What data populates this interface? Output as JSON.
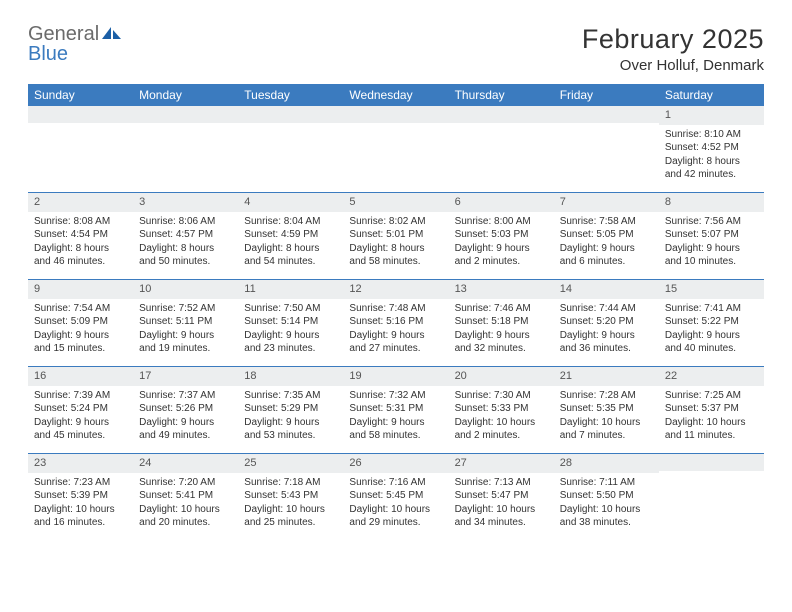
{
  "logo": {
    "text_general": "General",
    "text_blue": "Blue",
    "icon_color": "#1b5fa6"
  },
  "title": "February 2025",
  "location": "Over Holluf, Denmark",
  "colors": {
    "header_bar": "#3b7bbf",
    "header_text": "#ffffff",
    "daynum_bg": "#eceeef",
    "daynum_text": "#555555",
    "body_text": "#333333",
    "week_divider": "#3b7bbf",
    "background": "#ffffff"
  },
  "typography": {
    "title_fontsize": 27,
    "location_fontsize": 15,
    "header_fontsize": 12,
    "daynum_fontsize": 11,
    "body_fontsize": 10,
    "font_family": "Arial"
  },
  "day_names": [
    "Sunday",
    "Monday",
    "Tuesday",
    "Wednesday",
    "Thursday",
    "Friday",
    "Saturday"
  ],
  "weeks": [
    [
      null,
      null,
      null,
      null,
      null,
      null,
      {
        "n": "1",
        "sunrise": "8:10 AM",
        "sunset": "4:52 PM",
        "daylight": "8 hours and 42 minutes."
      }
    ],
    [
      {
        "n": "2",
        "sunrise": "8:08 AM",
        "sunset": "4:54 PM",
        "daylight": "8 hours and 46 minutes."
      },
      {
        "n": "3",
        "sunrise": "8:06 AM",
        "sunset": "4:57 PM",
        "daylight": "8 hours and 50 minutes."
      },
      {
        "n": "4",
        "sunrise": "8:04 AM",
        "sunset": "4:59 PM",
        "daylight": "8 hours and 54 minutes."
      },
      {
        "n": "5",
        "sunrise": "8:02 AM",
        "sunset": "5:01 PM",
        "daylight": "8 hours and 58 minutes."
      },
      {
        "n": "6",
        "sunrise": "8:00 AM",
        "sunset": "5:03 PM",
        "daylight": "9 hours and 2 minutes."
      },
      {
        "n": "7",
        "sunrise": "7:58 AM",
        "sunset": "5:05 PM",
        "daylight": "9 hours and 6 minutes."
      },
      {
        "n": "8",
        "sunrise": "7:56 AM",
        "sunset": "5:07 PM",
        "daylight": "9 hours and 10 minutes."
      }
    ],
    [
      {
        "n": "9",
        "sunrise": "7:54 AM",
        "sunset": "5:09 PM",
        "daylight": "9 hours and 15 minutes."
      },
      {
        "n": "10",
        "sunrise": "7:52 AM",
        "sunset": "5:11 PM",
        "daylight": "9 hours and 19 minutes."
      },
      {
        "n": "11",
        "sunrise": "7:50 AM",
        "sunset": "5:14 PM",
        "daylight": "9 hours and 23 minutes."
      },
      {
        "n": "12",
        "sunrise": "7:48 AM",
        "sunset": "5:16 PM",
        "daylight": "9 hours and 27 minutes."
      },
      {
        "n": "13",
        "sunrise": "7:46 AM",
        "sunset": "5:18 PM",
        "daylight": "9 hours and 32 minutes."
      },
      {
        "n": "14",
        "sunrise": "7:44 AM",
        "sunset": "5:20 PM",
        "daylight": "9 hours and 36 minutes."
      },
      {
        "n": "15",
        "sunrise": "7:41 AM",
        "sunset": "5:22 PM",
        "daylight": "9 hours and 40 minutes."
      }
    ],
    [
      {
        "n": "16",
        "sunrise": "7:39 AM",
        "sunset": "5:24 PM",
        "daylight": "9 hours and 45 minutes."
      },
      {
        "n": "17",
        "sunrise": "7:37 AM",
        "sunset": "5:26 PM",
        "daylight": "9 hours and 49 minutes."
      },
      {
        "n": "18",
        "sunrise": "7:35 AM",
        "sunset": "5:29 PM",
        "daylight": "9 hours and 53 minutes."
      },
      {
        "n": "19",
        "sunrise": "7:32 AM",
        "sunset": "5:31 PM",
        "daylight": "9 hours and 58 minutes."
      },
      {
        "n": "20",
        "sunrise": "7:30 AM",
        "sunset": "5:33 PM",
        "daylight": "10 hours and 2 minutes."
      },
      {
        "n": "21",
        "sunrise": "7:28 AM",
        "sunset": "5:35 PM",
        "daylight": "10 hours and 7 minutes."
      },
      {
        "n": "22",
        "sunrise": "7:25 AM",
        "sunset": "5:37 PM",
        "daylight": "10 hours and 11 minutes."
      }
    ],
    [
      {
        "n": "23",
        "sunrise": "7:23 AM",
        "sunset": "5:39 PM",
        "daylight": "10 hours and 16 minutes."
      },
      {
        "n": "24",
        "sunrise": "7:20 AM",
        "sunset": "5:41 PM",
        "daylight": "10 hours and 20 minutes."
      },
      {
        "n": "25",
        "sunrise": "7:18 AM",
        "sunset": "5:43 PM",
        "daylight": "10 hours and 25 minutes."
      },
      {
        "n": "26",
        "sunrise": "7:16 AM",
        "sunset": "5:45 PM",
        "daylight": "10 hours and 29 minutes."
      },
      {
        "n": "27",
        "sunrise": "7:13 AM",
        "sunset": "5:47 PM",
        "daylight": "10 hours and 34 minutes."
      },
      {
        "n": "28",
        "sunrise": "7:11 AM",
        "sunset": "5:50 PM",
        "daylight": "10 hours and 38 minutes."
      },
      null
    ]
  ],
  "labels": {
    "sunrise": "Sunrise: ",
    "sunset": "Sunset: ",
    "daylight": "Daylight: "
  }
}
